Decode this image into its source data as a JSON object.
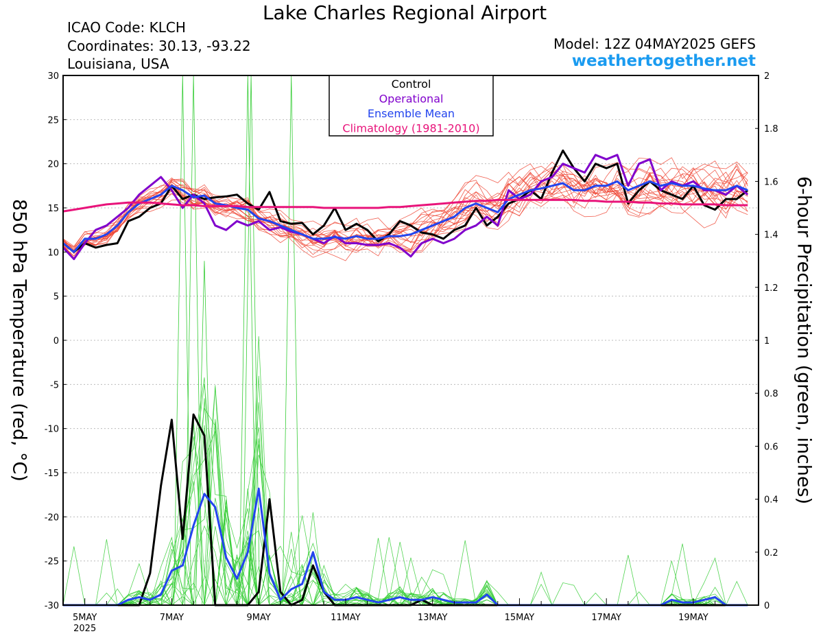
{
  "header": {
    "title": "Lake Charles Regional Airport",
    "icao": "ICAO Code: KLCH",
    "coordinates": "Coordinates: 30.13, -93.22",
    "location": "Louisiana, USA",
    "model": "Model: 12Z 04MAY2025 GEFS",
    "website": "weathertogether.net"
  },
  "chart_data": {
    "type": "line",
    "x_unit": "6-hour steps from 12Z 04MAY2025",
    "xlim_steps": [
      0,
      64
    ],
    "x_ticks": [
      {
        "label": "5MAY",
        "sublabel": "2025",
        "step": 2
      },
      {
        "label": "7MAY",
        "step": 10
      },
      {
        "label": "9MAY",
        "step": 18
      },
      {
        "label": "11MAY",
        "step": 26
      },
      {
        "label": "13MAY",
        "step": 34
      },
      {
        "label": "15MAY",
        "step": 42
      },
      {
        "label": "17MAY",
        "step": 50
      },
      {
        "label": "19MAY",
        "step": 58
      }
    ],
    "ylabel_left": "850 hPa Temperature (red, °C)",
    "ylabel_right": "6-hour Precipitation (green, inches)",
    "ylim_left": [
      -30,
      30
    ],
    "yticks_left": [
      30,
      25,
      20,
      15,
      10,
      5,
      0,
      -5,
      -10,
      -15,
      -20,
      -25,
      -30
    ],
    "ylim_right": [
      0,
      2
    ],
    "yticks_right": [
      "2",
      "1.8",
      "1.6",
      "1.4",
      "1.2",
      "1",
      "0.8",
      "0.6",
      "0.4",
      "0.2",
      "0"
    ],
    "grid": "horizontal dashed",
    "legend": {
      "position": "top-center",
      "items": [
        {
          "label": "Control",
          "color": "#000000"
        },
        {
          "label": "Operational",
          "color": "#8000cc"
        },
        {
          "label": "Ensemble Mean",
          "color": "#2244ee"
        },
        {
          "label": "Climatology (1981-2010)",
          "color": "#e8137a"
        }
      ]
    },
    "colors": {
      "members_temp": "#ee4433",
      "members_precip": "#33cc33"
    },
    "temperature_series": [
      {
        "name": "Control",
        "color": "#000000",
        "values": [
          11,
          10,
          11,
          10.5,
          10.8,
          11,
          13.5,
          14,
          15,
          15.5,
          17.5,
          16,
          16.5,
          16,
          16.2,
          16.3,
          16.5,
          15.5,
          14.8,
          16.8,
          13.5,
          13.2,
          13.3,
          12,
          13,
          15,
          12.5,
          13.2,
          12.5,
          11.2,
          12,
          13.5,
          13,
          12.2,
          12,
          11.5,
          12.5,
          13,
          15,
          13,
          14,
          15.5,
          16,
          17,
          16,
          19,
          21.5,
          19.5,
          18,
          20,
          19.5,
          20,
          15.5,
          17,
          18,
          17,
          16.5,
          16,
          17.5,
          15.3,
          14.8,
          16,
          16,
          17
        ]
      },
      {
        "name": "Operational",
        "color": "#8000cc",
        "values": [
          10.5,
          9.2,
          11,
          12.5,
          13,
          14,
          15,
          16.5,
          17.5,
          18.5,
          17,
          15,
          16.5,
          15.5,
          13,
          12.5,
          13.5,
          13,
          13.5,
          12.5,
          12.8,
          12.3,
          12,
          11.5,
          11,
          11.8,
          11,
          11,
          10.8,
          10.8,
          11,
          10.5,
          9.5,
          11,
          11.5,
          11,
          11.5,
          12.5,
          13,
          14,
          13,
          17,
          16,
          16.5,
          18,
          18.5,
          20,
          19.5,
          19,
          21,
          20.5,
          21,
          17.5,
          20,
          20.5,
          17,
          18,
          17.5,
          18,
          17,
          17,
          16.5,
          17.5,
          16.5
        ]
      },
      {
        "name": "Ensemble Mean",
        "color": "#2244ee",
        "values": [
          11,
          10,
          11.5,
          11.5,
          12,
          13,
          14.5,
          15.5,
          16,
          16.5,
          17.5,
          17,
          16.2,
          16.4,
          15.5,
          15.3,
          15,
          14.8,
          13.8,
          13.5,
          13,
          12.5,
          12,
          11.5,
          11.5,
          11.7,
          11.5,
          11.8,
          11.5,
          11.5,
          11.8,
          11.8,
          12,
          12.5,
          13,
          13.5,
          14,
          15,
          15.5,
          15,
          14.5,
          16,
          16.5,
          17,
          17.2,
          17.5,
          17.8,
          17,
          17,
          17.5,
          17.5,
          18,
          17,
          17.5,
          18,
          17.5,
          17.8,
          17.5,
          17.5,
          17.2,
          17,
          17,
          17.5,
          17
        ]
      },
      {
        "name": "Climatology (1981-2010)",
        "color": "#e8137a",
        "values": [
          14.6,
          14.8,
          15,
          15.2,
          15.4,
          15.5,
          15.6,
          15.6,
          15.6,
          15.5,
          15.4,
          15.3,
          15.3,
          15.2,
          15.2,
          15.2,
          15.2,
          15.1,
          15.1,
          15.1,
          15.1,
          15.1,
          15.1,
          15.1,
          15.0,
          15.0,
          15.0,
          15.0,
          15.0,
          15.0,
          15.1,
          15.1,
          15.2,
          15.3,
          15.4,
          15.5,
          15.6,
          15.7,
          15.8,
          15.8,
          15.9,
          15.9,
          15.9,
          15.9,
          15.9,
          15.9,
          15.9,
          15.9,
          15.8,
          15.8,
          15.7,
          15.7,
          15.7,
          15.6,
          15.6,
          15.5,
          15.5,
          15.4,
          15.4,
          15.4,
          15.4,
          15.3,
          15.3,
          15.3
        ]
      }
    ],
    "precip_series": [
      {
        "name": "Control",
        "color": "#000000",
        "values": [
          0,
          0,
          0,
          0,
          0,
          0,
          0,
          0,
          0.12,
          0.45,
          0.7,
          0.25,
          0.72,
          0.64,
          0,
          0,
          0,
          0,
          0.05,
          0.4,
          0.05,
          0,
          0.02,
          0.15,
          0.05,
          0,
          0,
          0,
          0,
          0,
          0,
          0,
          0,
          0.02,
          0,
          0,
          0,
          0,
          0,
          0,
          0,
          0,
          0,
          0,
          0,
          0,
          0,
          0,
          0,
          0,
          0,
          0,
          0,
          0,
          0,
          0,
          0,
          0,
          0,
          0,
          0,
          0,
          0,
          0
        ]
      },
      {
        "name": "Ensemble Mean",
        "color": "#2244ee",
        "values": [
          0,
          0,
          0,
          0,
          0,
          0,
          0.02,
          0.03,
          0.02,
          0.04,
          0.13,
          0.15,
          0.3,
          0.42,
          0.37,
          0.18,
          0.1,
          0.2,
          0.44,
          0.12,
          0.02,
          0.06,
          0.08,
          0.2,
          0.05,
          0.02,
          0.02,
          0.03,
          0.02,
          0.01,
          0.02,
          0.03,
          0.02,
          0.02,
          0.03,
          0.02,
          0.01,
          0.01,
          0.01,
          0.04,
          0,
          0,
          0,
          0,
          0,
          0,
          0,
          0,
          0,
          0,
          0,
          0,
          0,
          0,
          0,
          0,
          0.02,
          0.01,
          0.01,
          0.02,
          0.03,
          0,
          0,
          0
        ]
      }
    ]
  }
}
